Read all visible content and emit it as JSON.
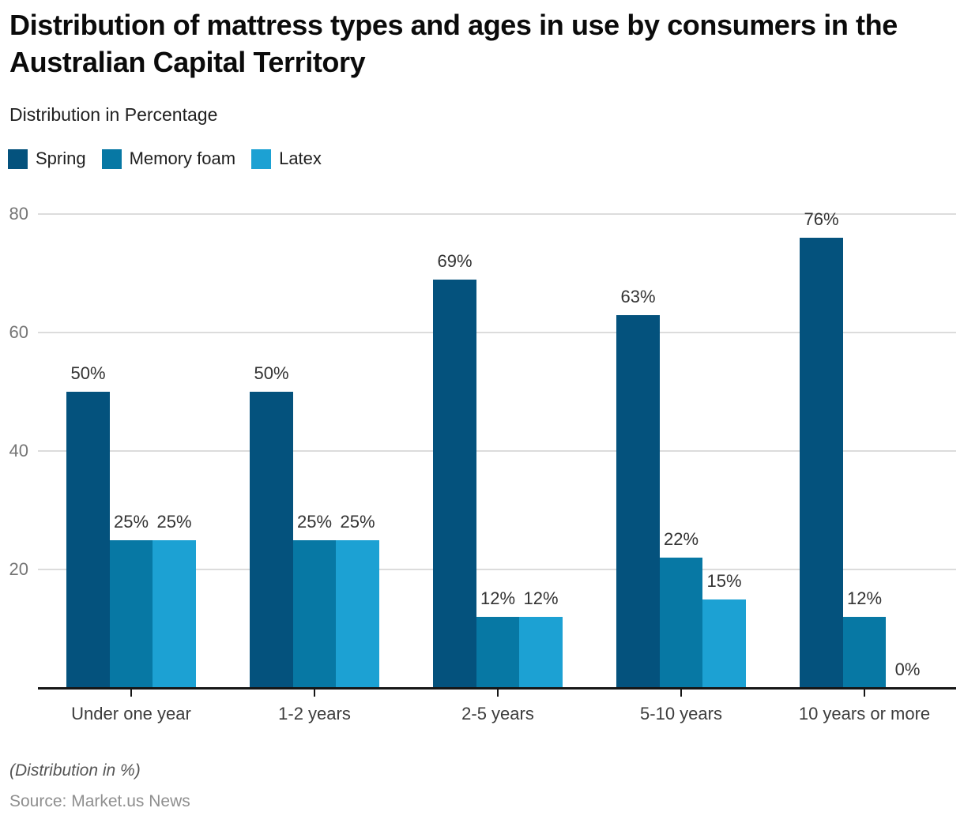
{
  "header": {
    "title": "Distribution of mattress types and ages in use by consumers in the Australian Capital Territory",
    "subtitle": "Distribution in Percentage"
  },
  "chart_data": {
    "type": "bar",
    "title": "Distribution of mattress types and ages in use by consumers in the Australian Capital Territory",
    "subtitle": "Distribution in Percentage",
    "categories": [
      "Under one year",
      "1-2 years",
      "2-5 years",
      "5-10 years",
      "10 years or more"
    ],
    "series": [
      {
        "name": "Spring",
        "color": "#04527d",
        "values": [
          50,
          50,
          69,
          63,
          76
        ]
      },
      {
        "name": "Memory foam",
        "color": "#0778a4",
        "values": [
          25,
          25,
          12,
          22,
          12
        ]
      },
      {
        "name": "Latex",
        "color": "#1ca1d3",
        "values": [
          25,
          25,
          12,
          15,
          0
        ]
      }
    ],
    "value_suffix": "%",
    "yticks": [
      20,
      40,
      60,
      80
    ],
    "ylim": [
      0,
      80
    ],
    "grid": "horizontal",
    "legend_position": "top-left",
    "xlabel": "",
    "ylabel": ""
  },
  "colors": {
    "gridline": "#dcdcdc",
    "axis": "#161616",
    "ytick_label": "#757575",
    "xtick_label": "#3c3c3c",
    "value_label": "#333333"
  },
  "footer": {
    "note": "(Distribution in %)",
    "source": "Source: Market.us News"
  }
}
